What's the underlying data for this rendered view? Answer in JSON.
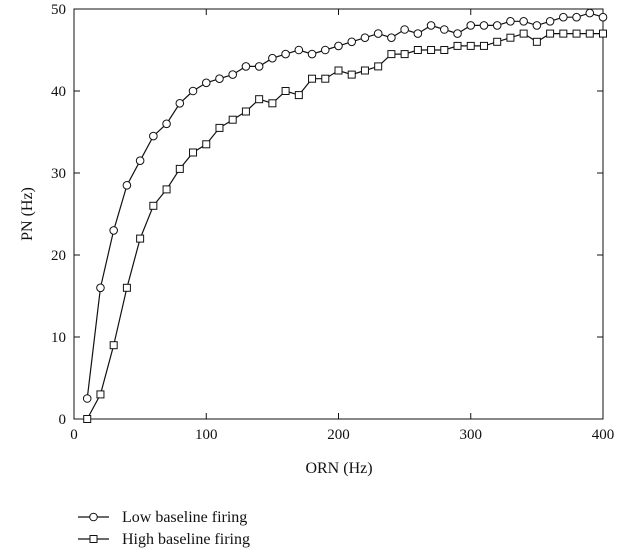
{
  "chart_data": {
    "type": "line",
    "xlabel": "ORN (Hz)",
    "ylabel": "PN (Hz)",
    "xlim": [
      0,
      400
    ],
    "ylim": [
      0,
      50
    ],
    "xticks": [
      "0",
      "100",
      "200",
      "300",
      "400"
    ],
    "yticks": [
      "0",
      "10",
      "20",
      "30",
      "40",
      "50"
    ],
    "grid": false,
    "legend_position": "bottom-left",
    "x": [
      10,
      20,
      30,
      40,
      50,
      60,
      70,
      80,
      90,
      100,
      110,
      120,
      130,
      140,
      150,
      160,
      170,
      180,
      190,
      200,
      210,
      220,
      230,
      240,
      250,
      260,
      270,
      280,
      290,
      300,
      310,
      320,
      330,
      340,
      350,
      360,
      370,
      380,
      390,
      400
    ],
    "series": [
      {
        "name": "Low baseline firing",
        "marker": "circle",
        "values": [
          2.5,
          16,
          23,
          28.5,
          31.5,
          34.5,
          36,
          38.5,
          40,
          41,
          41.5,
          42,
          43,
          43,
          44,
          44.5,
          45,
          44.5,
          45,
          45.5,
          46,
          46.5,
          47,
          46.5,
          47.5,
          47,
          48,
          47.5,
          47,
          48,
          48,
          48,
          48.5,
          48.5,
          48,
          48.5,
          49,
          49,
          49.5,
          49
        ]
      },
      {
        "name": "High baseline firing",
        "marker": "square",
        "values": [
          0,
          3,
          9,
          16,
          22,
          26,
          28,
          30.5,
          32.5,
          33.5,
          35.5,
          36.5,
          37.5,
          39,
          38.5,
          40,
          39.5,
          41.5,
          41.5,
          42.5,
          42,
          42.5,
          43,
          44.5,
          44.5,
          45,
          45,
          45,
          45.5,
          45.5,
          45.5,
          46,
          46.5,
          47,
          46,
          47,
          47,
          47,
          47,
          47
        ]
      }
    ]
  }
}
